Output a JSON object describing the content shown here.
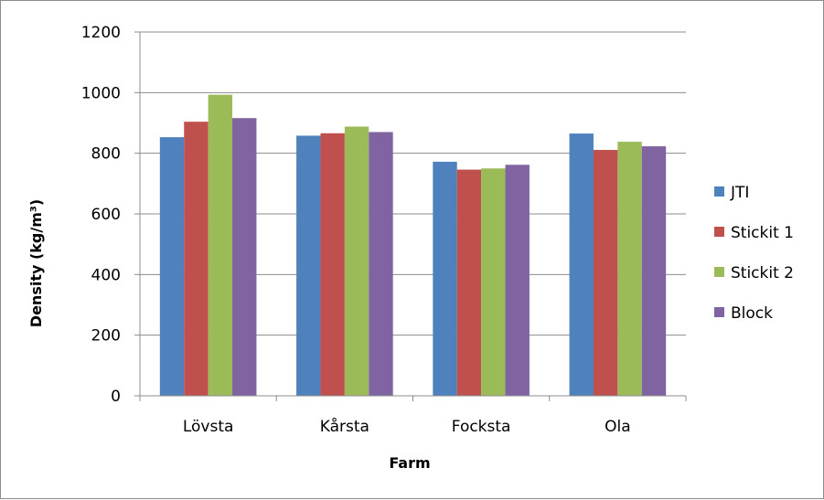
{
  "chart_data": {
    "type": "bar",
    "categories": [
      "Lövsta",
      "Kårsta",
      "Focksta",
      "Ola"
    ],
    "series": [
      {
        "name": "JTI",
        "color": "#4f81bd",
        "values": [
          853,
          858,
          772,
          865
        ]
      },
      {
        "name": "Stickit 1",
        "color": "#c0504d",
        "values": [
          904,
          866,
          746,
          811
        ]
      },
      {
        "name": "Stickit 2",
        "color": "#9bbb59",
        "values": [
          993,
          888,
          750,
          838
        ]
      },
      {
        "name": "Block",
        "color": "#8064a2",
        "values": [
          916,
          870,
          762,
          823
        ]
      }
    ],
    "xlabel": "Farm",
    "ylabel": "Density (kg/m³)",
    "ylim": [
      0,
      1200
    ],
    "yticks": [
      "0",
      "200",
      "400",
      "600",
      "800",
      "1000",
      "1200"
    ],
    "grid": true,
    "legend_position": "right",
    "gridline_color": "#8c8c8c"
  }
}
